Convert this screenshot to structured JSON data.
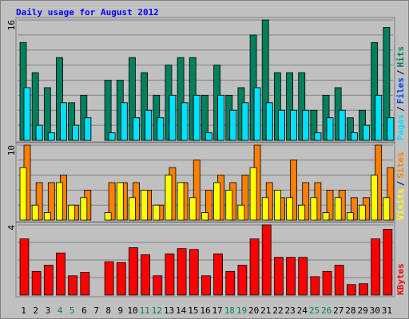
{
  "chart_data": [
    {
      "type": "bar",
      "title": "Daily usage for August 2012",
      "ylim": [
        0,
        16
      ],
      "yticks": [
        16
      ],
      "grid_step": 2,
      "legend_separator": "/",
      "series": [
        {
          "name": "Hits",
          "color": "#00805c",
          "values": [
            13,
            9,
            7,
            11,
            5,
            6,
            0,
            8,
            8,
            11,
            9,
            6,
            10,
            11,
            11,
            6,
            10,
            6,
            7,
            14,
            16,
            9,
            9,
            9,
            4,
            6,
            7,
            3,
            4,
            13,
            15
          ]
        },
        {
          "name": "Files",
          "color": "#0040ff",
          "values": [
            7,
            2,
            1,
            5,
            2,
            3,
            0,
            1,
            5,
            3,
            4,
            3,
            6,
            5,
            6,
            1,
            6,
            4,
            5,
            7,
            5,
            4,
            4,
            4,
            1,
            3,
            4,
            1,
            2,
            6,
            3
          ]
        },
        {
          "name": "Pages",
          "color": "#00e0ff",
          "values": [
            7,
            2,
            1,
            5,
            2,
            3,
            0,
            1,
            5,
            3,
            4,
            3,
            6,
            5,
            6,
            1,
            6,
            4,
            5,
            7,
            5,
            4,
            4,
            4,
            1,
            3,
            4,
            1,
            2,
            6,
            3
          ]
        }
      ]
    },
    {
      "type": "bar",
      "ylim": [
        0,
        10
      ],
      "yticks": [
        10
      ],
      "grid_step": 2,
      "legend_separator": "/",
      "series": [
        {
          "name": "Sites",
          "color": "#ff8000",
          "values": [
            10,
            5,
            5,
            6,
            2,
            4,
            0,
            5,
            5,
            5,
            4,
            2,
            7,
            5,
            8,
            4,
            6,
            5,
            6,
            10,
            5,
            3,
            8,
            5,
            5,
            4,
            4,
            3,
            3,
            10,
            7
          ]
        },
        {
          "name": "Visits",
          "color": "#ffff00",
          "values": [
            7,
            2,
            1,
            5,
            2,
            3,
            0,
            1,
            5,
            3,
            4,
            2,
            6,
            5,
            3,
            1,
            5,
            4,
            2,
            7,
            3,
            4,
            3,
            2,
            3,
            1,
            3,
            1,
            2,
            6,
            3
          ]
        }
      ]
    },
    {
      "type": "bar",
      "ylim": [
        0,
        4
      ],
      "yticks": [
        4
      ],
      "grid_step": 1,
      "categories": [
        "1",
        "2",
        "3",
        "4",
        "5",
        "6",
        "7",
        "8",
        "9",
        "10",
        "11",
        "12",
        "13",
        "14",
        "15",
        "16",
        "17",
        "18",
        "19",
        "20",
        "21",
        "22",
        "23",
        "24",
        "25",
        "26",
        "27",
        "28",
        "29",
        "30",
        "31"
      ],
      "label_colors": [
        "#000000",
        "#000000",
        "#000000",
        "#00805c",
        "#00805c",
        "#000000",
        "#000000",
        "#000000",
        "#000000",
        "#000000",
        "#00805c",
        "#00805c",
        "#000000",
        "#000000",
        "#000000",
        "#000000",
        "#000000",
        "#00805c",
        "#00805c",
        "#000000",
        "#000000",
        "#000000",
        "#000000",
        "#000000",
        "#00805c",
        "#00805c",
        "#000000",
        "#000000",
        "#000000",
        "#000000",
        "#000000"
      ],
      "series": [
        {
          "name": "KBytes",
          "color": "#ff0000",
          "values": [
            3.2,
            1.35,
            1.7,
            2.4,
            1.1,
            1.3,
            0,
            1.9,
            1.85,
            2.7,
            2.3,
            1.1,
            2.35,
            2.65,
            2.6,
            1.1,
            2.35,
            1.35,
            1.7,
            3.2,
            4.0,
            2.15,
            2.15,
            2.15,
            1.05,
            1.35,
            1.7,
            0.6,
            0.65,
            3.2,
            3.75
          ]
        }
      ]
    }
  ]
}
